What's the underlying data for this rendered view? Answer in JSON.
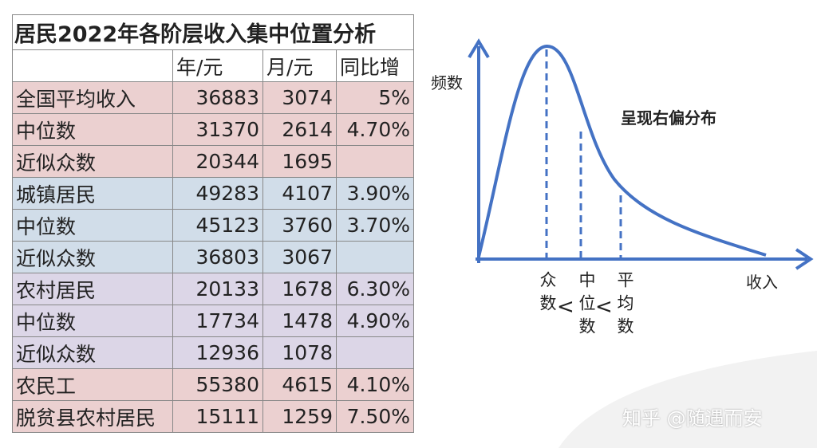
{
  "table": {
    "title": "居民2022年各阶层收入集中位置分析",
    "header": [
      "年/元",
      "月/元",
      "同比增"
    ],
    "rows": [
      [
        "全国平均收入",
        "36883",
        "3074",
        "5%"
      ],
      [
        "中位数",
        "31370",
        "2614",
        "4.70%"
      ],
      [
        "近似众数",
        "20344",
        "1695",
        null
      ],
      [
        "城镇居民",
        "49283",
        "4107",
        "3.90%"
      ],
      [
        "中位数",
        "45123",
        "3760",
        "3.70%"
      ],
      [
        "近似众数",
        "36803",
        "3067",
        null
      ],
      [
        "农村居民",
        "20133",
        "1678",
        "6.30%"
      ],
      [
        "中位数",
        "17734",
        "1478",
        "4.90%"
      ],
      [
        "近似众数",
        "12936",
        "1078",
        null
      ],
      [
        "农民工",
        "55380",
        "4615",
        "4.10%"
      ],
      [
        "脱贫县农村居民",
        "15111",
        "1259",
        "7.50%"
      ]
    ]
  },
  "diagram": {
    "y_axis_label": "频数",
    "x_axis_label": "收入",
    "annotation": "呈现右偏分布",
    "markers": [
      "众数",
      "中位数",
      "平均数"
    ],
    "separators": [
      "<",
      "<"
    ]
  },
  "watermark": "知乎 @随遇而安"
}
